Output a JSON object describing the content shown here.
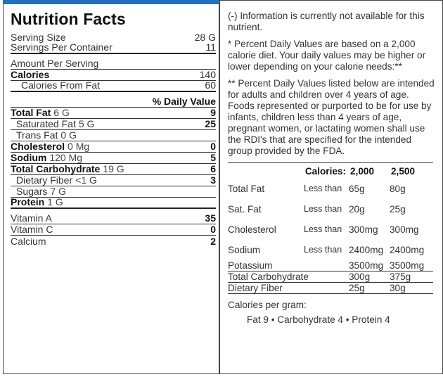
{
  "title": "Nutrition Facts",
  "serving": [
    {
      "label": "Serving Size",
      "value": "28 G"
    },
    {
      "label": "Servings Per Container",
      "value": "11"
    }
  ],
  "amount_per_serving": "Amount Per Serving",
  "calories": {
    "label": "Calories",
    "value": "140"
  },
  "calories_from_fat": {
    "label": "Calories From Fat",
    "value": "60"
  },
  "daily_value_header": "% Daily Value",
  "nutrients": [
    {
      "label": "Total Fat",
      "amount": "6 G",
      "pct": "9"
    },
    {
      "label": "Saturated Fat",
      "amount": "5 G",
      "pct": "25"
    },
    {
      "label": "Trans Fat",
      "amount": "0 G",
      "pct": ""
    },
    {
      "label": "Cholesterol",
      "amount": "0 Mg",
      "pct": "0"
    },
    {
      "label": "Sodium",
      "amount": "120 Mg",
      "pct": "5"
    },
    {
      "label": "Total Carbohydrate",
      "amount": "19 G",
      "pct": "6"
    },
    {
      "label": "Dietary Fiber",
      "amount": "<1 G",
      "pct": "3"
    },
    {
      "label": "Sugars",
      "amount": "7 G",
      "pct": ""
    },
    {
      "label": "Protein",
      "amount": "1 G",
      "pct": ""
    }
  ],
  "vitamins": [
    {
      "label": "Vitamin A",
      "pct": "35"
    },
    {
      "label": "Vitamin C",
      "pct": "0"
    },
    {
      "label": "Calcium",
      "pct": "2"
    }
  ],
  "notes": {
    "unavailable": "(-) Information is currently not available for this nutrient.",
    "percent": "* Percent Daily Values are based on a 2,000 calorie diet. Your daily values may be higher or lower depending on your calorie needs:**",
    "listed": "** Percent Daily Values listed below are intended for adults and children over 4 years of age. Foods represented or purported to be for use by infants, children less than 4 years of age, pregnant women, or lactating women shall use the RDI's that are specified for the intended group provided by the FDA."
  },
  "calorie_table": {
    "header": {
      "label": "Calories:",
      "c1": "2,000",
      "c2": "2,500"
    },
    "less_than": "Less than",
    "rows": [
      {
        "name": "Total Fat",
        "lt": true,
        "v1": "65g",
        "v2": "80g"
      },
      {
        "name": "Sat. Fat",
        "lt": true,
        "v1": "20g",
        "v2": "25g"
      },
      {
        "name": "Cholesterol",
        "lt": true,
        "v1": "300mg",
        "v2": "300mg"
      },
      {
        "name": "Sodium",
        "lt": true,
        "v1": "2400mg",
        "v2": "2400mg"
      },
      {
        "name": "Potassium",
        "lt": false,
        "v1": "3500mg",
        "v2": "3500mg"
      },
      {
        "name": "Total Carbohydrate",
        "lt": false,
        "v1": "300g",
        "v2": "375g"
      },
      {
        "name": "Dietary Fiber",
        "lt": false,
        "v1": "25g",
        "v2": "30g"
      }
    ]
  },
  "calories_per_gram": {
    "label": "Calories per gram:",
    "values": "Fat 9 • Carbohydrate 4 • Protein 4"
  },
  "accent_color": "#1f6fc5"
}
